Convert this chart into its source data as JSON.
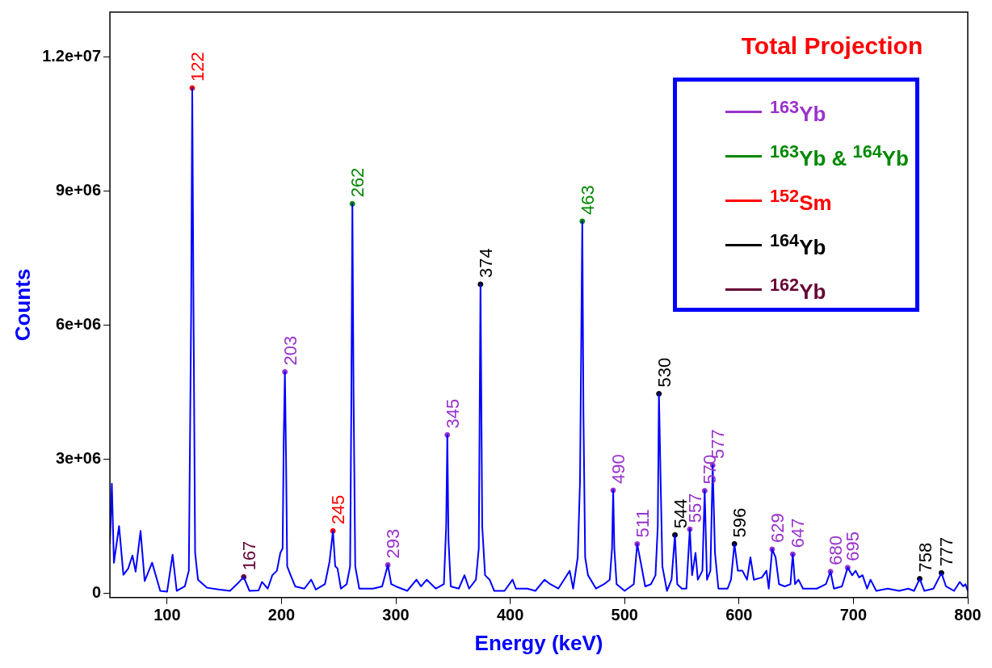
{
  "chart_data": {
    "type": "line",
    "title": "Total Projection",
    "xlabel": "Energy (keV)",
    "ylabel": "Counts",
    "xlim": [
      50,
      800
    ],
    "xticks": [
      100,
      200,
      300,
      400,
      500,
      600,
      700,
      800
    ],
    "ylim": [
      -100000,
      13000000
    ],
    "yticks": [
      0,
      {
        "value": 3000000,
        "label": "3e+06"
      },
      {
        "value": 6000000,
        "label": "6e+06"
      },
      {
        "value": 9000000,
        "label": "9e+06"
      },
      {
        "value": 12000000,
        "label": "1.2e+07"
      }
    ],
    "grid": false,
    "legend": "top right",
    "marker": "circle",
    "line_style": "solid",
    "annotations": [
      {
        "text": "122",
        "x": 122,
        "y": 11300000
      },
      {
        "text": "167",
        "x": 167,
        "y": 360000
      },
      {
        "text": "203",
        "x": 203,
        "y": 4950000
      },
      {
        "text": "245",
        "x": 245,
        "y": 1390000
      },
      {
        "text": "262",
        "x": 262,
        "y": 8710000
      },
      {
        "text": "293",
        "x": 293,
        "y": 630000
      },
      {
        "text": "345",
        "x": 345,
        "y": 3540000
      },
      {
        "text": "374",
        "x": 374,
        "y": 6910000
      },
      {
        "text": "463",
        "x": 463,
        "y": 8320000
      },
      {
        "text": "490",
        "x": 490,
        "y": 2300000
      },
      {
        "text": "511",
        "x": 511,
        "y": 1100000
      },
      {
        "text": "530",
        "x": 530,
        "y": 4460000
      },
      {
        "text": "544",
        "x": 544,
        "y": 1300000
      },
      {
        "text": "557",
        "x": 557,
        "y": 1430000
      },
      {
        "text": "570",
        "x": 570,
        "y": 2290000
      },
      {
        "text": "577",
        "x": 577,
        "y": 2860000
      },
      {
        "text": "596",
        "x": 596,
        "y": 1100000
      },
      {
        "text": "629",
        "x": 629,
        "y": 980000
      },
      {
        "text": "647",
        "x": 647,
        "y": 870000
      },
      {
        "text": "680",
        "x": 680,
        "y": 480000
      },
      {
        "text": "695",
        "x": 695,
        "y": 570000
      },
      {
        "text": "758",
        "x": 758,
        "y": 320000
      },
      {
        "text": "777",
        "x": 777,
        "y": 450000
      }
    ],
    "series": [
      {
        "marker": "none",
        "color": "#0000ff",
        "x": [
          50,
          51.7,
          53.5,
          58,
          61.8,
          66,
          69.7,
          72.5,
          76.8,
          80.4,
          86.9,
          94,
          100,
          104.8,
          108.4,
          115.5,
          119,
          121,
          122,
          123,
          124.5,
          127,
          135,
          145,
          155,
          163,
          167,
          172,
          180,
          183,
          188,
          192,
          196,
          199,
          201,
          202,
          203,
          204,
          205,
          208,
          212,
          220,
          226,
          230,
          238,
          242,
          245,
          247,
          249,
          252,
          257,
          260,
          261,
          262,
          263,
          264.5,
          268,
          280,
          288,
          293,
          296,
          300,
          310,
          318,
          322,
          327,
          335,
          342,
          344,
          345,
          346,
          348,
          355,
          360,
          364,
          370,
          372.5,
          374,
          375.5,
          378,
          382,
          386,
          395,
          402,
          405,
          415,
          422,
          430,
          435,
          442,
          447,
          452,
          455,
          459,
          461,
          463,
          464,
          465.5,
          468,
          475,
          482,
          487,
          489,
          490,
          491,
          493,
          500,
          508,
          511,
          514,
          518,
          523,
          527,
          529,
          530,
          531.5,
          533,
          537,
          541,
          544,
          546,
          550,
          554,
          557,
          559,
          562,
          564,
          568,
          570,
          572,
          575,
          577,
          579,
          582,
          590,
          593,
          596,
          599,
          603,
          607,
          610,
          613,
          620,
          624,
          626,
          629,
          632,
          635,
          640,
          645,
          647,
          649,
          652,
          656,
          668,
          676,
          680,
          683,
          690,
          695,
          699,
          702,
          705,
          708,
          712,
          715,
          720,
          730,
          740,
          748,
          753,
          758,
          762,
          770,
          777,
          781,
          788,
          793,
          796,
          798,
          800
        ],
        "values": [
          1100000,
          2450000,
          680000,
          1500000,
          410000,
          550000,
          840000,
          480000,
          1390000,
          270000,
          680000,
          50000,
          30000,
          860000,
          50000,
          150000,
          500000,
          6200000,
          11300000,
          6700000,
          900000,
          300000,
          120000,
          80000,
          50000,
          250000,
          360000,
          50000,
          60000,
          250000,
          100000,
          400000,
          500000,
          900000,
          1000000,
          3500000,
          4950000,
          3000000,
          600000,
          400000,
          150000,
          100000,
          300000,
          80000,
          200000,
          700000,
          1390000,
          600000,
          550000,
          100000,
          200000,
          600000,
          4000000,
          8710000,
          4500000,
          600000,
          100000,
          100000,
          150000,
          630000,
          200000,
          150000,
          50000,
          300000,
          150000,
          300000,
          100000,
          200000,
          1500000,
          3540000,
          1200000,
          150000,
          100000,
          400000,
          100000,
          300000,
          1000000,
          6910000,
          1500000,
          400000,
          300000,
          50000,
          50000,
          300000,
          100000,
          100000,
          50000,
          300000,
          200000,
          100000,
          300000,
          500000,
          100000,
          800000,
          2500000,
          8320000,
          4000000,
          800000,
          400000,
          100000,
          200000,
          300000,
          1000000,
          2300000,
          1000000,
          200000,
          50000,
          200000,
          1100000,
          700000,
          150000,
          200000,
          400000,
          1500000,
          4460000,
          2500000,
          600000,
          50000,
          300000,
          1300000,
          200000,
          100000,
          100000,
          1430000,
          400000,
          900000,
          300000,
          500000,
          2290000,
          300000,
          500000,
          2860000,
          900000,
          100000,
          100000,
          300000,
          1100000,
          500000,
          500000,
          300000,
          800000,
          300000,
          350000,
          500000,
          100000,
          980000,
          800000,
          200000,
          150000,
          200000,
          870000,
          200000,
          300000,
          100000,
          100000,
          200000,
          480000,
          100000,
          150000,
          570000,
          400000,
          500000,
          350000,
          400000,
          100000,
          300000,
          50000,
          100000,
          50000,
          100000,
          50000,
          320000,
          50000,
          100000,
          450000,
          150000,
          50000,
          250000,
          150000,
          200000,
          50000
        ]
      },
      {
        "type": "scatter",
        "name": "$^{163}$Yb",
        "color": "#9933cc",
        "x": [
          203,
          293,
          345,
          490,
          511,
          557,
          570,
          577,
          629,
          647,
          680,
          695
        ],
        "values": [
          4950000,
          630000,
          3540000,
          2300000,
          1100000,
          1430000,
          2290000,
          2860000,
          980000,
          870000,
          480000,
          570000
        ]
      },
      {
        "type": "scatter",
        "name": "$^{163}$Yb & $^{164}$Yb",
        "color": "#008800",
        "x": [
          262,
          463
        ],
        "values": [
          8710000,
          8320000
        ]
      },
      {
        "type": "scatter",
        "name": "$^{152}$Sm",
        "color": "#ff0000",
        "x": [
          122,
          245
        ],
        "values": [
          11300000,
          1390000
        ]
      },
      {
        "type": "scatter",
        "name": "$^{164}$Yb",
        "color": "#000000",
        "x": [
          374,
          530,
          544,
          596,
          758,
          777
        ],
        "values": [
          6910000,
          4460000,
          1300000,
          1100000,
          320000,
          450000
        ]
      },
      {
        "type": "scatter",
        "name": "$^{162}$Yb",
        "color": "#660033",
        "x": [
          167
        ],
        "values": [
          360000
        ]
      }
    ]
  }
}
